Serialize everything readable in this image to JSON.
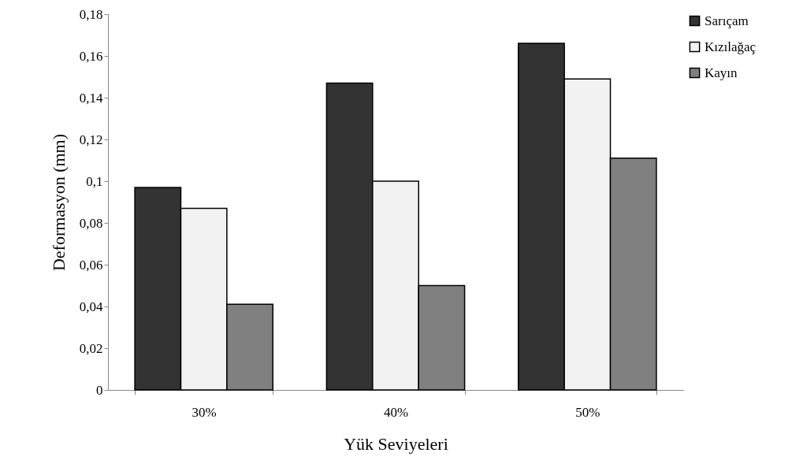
{
  "chart_data": {
    "type": "bar",
    "xlabel": "Yük Seviyeleri",
    "ylabel": "Deformasyon (mm)",
    "categories": [
      "30%",
      "40%",
      "50%"
    ],
    "series": [
      {
        "name": "Sarıçam",
        "color": "#333333",
        "values": [
          0.097,
          0.147,
          0.166
        ]
      },
      {
        "name": "Kızılağaç",
        "color": "#f2f2f2",
        "values": [
          0.087,
          0.1,
          0.149
        ]
      },
      {
        "name": "Kayın",
        "color": "#808080",
        "values": [
          0.041,
          0.05,
          0.111
        ]
      }
    ],
    "ylim": [
      0,
      0.18
    ],
    "yticks": [
      0,
      {
        "value": 0.02,
        "label": "0,02"
      },
      {
        "value": 0.04,
        "label": "0,04"
      },
      {
        "value": 0.06,
        "label": "0,06"
      },
      {
        "value": 0.08,
        "label": "0,08"
      },
      {
        "value": 0.1,
        "label": "0,1"
      },
      {
        "value": 0.12,
        "label": "0,12"
      },
      {
        "value": 0.14,
        "label": "0,14"
      },
      {
        "value": 0.16,
        "label": "0,16"
      },
      {
        "value": 0.18,
        "label": "0,18"
      }
    ],
    "grid": false,
    "legend": "right"
  }
}
